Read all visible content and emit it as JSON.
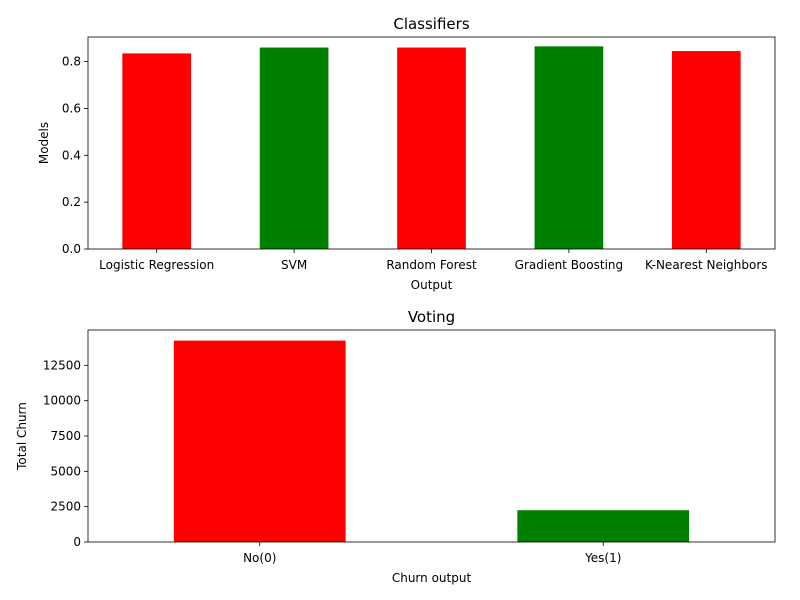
{
  "chart_data": [
    {
      "type": "bar",
      "title": "Classifiers",
      "xlabel": "Output",
      "ylabel": "Models",
      "categories": [
        "Logistic Regression",
        "SVM",
        "Random Forest",
        "Gradient Boosting",
        "K-Nearest Neighbors"
      ],
      "values": [
        0.835,
        0.86,
        0.86,
        0.865,
        0.845
      ],
      "colors": [
        "#ff0000",
        "#008000",
        "#ff0000",
        "#008000",
        "#ff0000"
      ],
      "ylim": [
        0,
        0.905
      ],
      "yticks": [
        0.0,
        0.2,
        0.4,
        0.6,
        0.8
      ],
      "ytick_labels": [
        "0.0",
        "0.2",
        "0.4",
        "0.6",
        "0.8"
      ],
      "grid": false,
      "legend": "none"
    },
    {
      "type": "bar",
      "title": "Voting",
      "xlabel": "Churn output",
      "ylabel": "Total Churn",
      "categories": [
        "No(0)",
        "Yes(1)"
      ],
      "values": [
        14250,
        2250
      ],
      "colors": [
        "#ff0000",
        "#008000"
      ],
      "ylim": [
        0,
        15000
      ],
      "yticks": [
        0,
        2500,
        5000,
        7500,
        10000,
        12500
      ],
      "ytick_labels": [
        "0",
        "2500",
        "5000",
        "7500",
        "10000",
        "12500"
      ],
      "grid": false,
      "legend": "none"
    }
  ]
}
